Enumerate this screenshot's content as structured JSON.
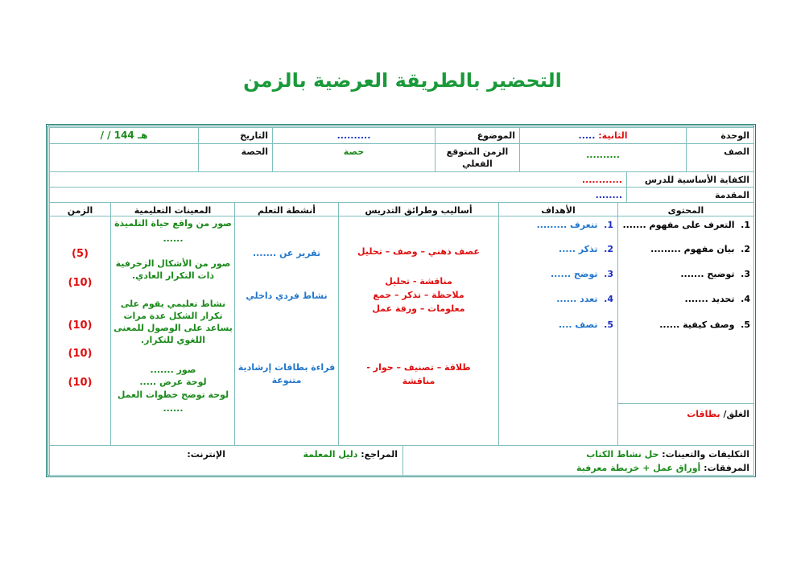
{
  "title": "التحضير بالطريقة العرضية بالزمن",
  "header": {
    "unit_label": "الوحدة",
    "unit_value_prefix": "الثانية:",
    "unit_value": ".....",
    "topic_label": "الموضوع",
    "topic_value": "..........",
    "date_label": "التاريخ",
    "date_value": "/    /   144 هـ",
    "grade_label": "الصف",
    "grade_value": "..........",
    "time_label": "الزمن المتوقع الفعلي",
    "time_value": "حصة",
    "period_label": "الحصة",
    "competency_label": "الكفاية الأساسية للدرس",
    "competency_value": "............",
    "intro_label": "المقدمة",
    "intro_value": "........"
  },
  "columns": [
    "المحتوى",
    "الأهداف",
    "أساليب وطرائق التدريس",
    "أنشطة التعلم",
    "المعينات التعليمية",
    "الزمن"
  ],
  "content": [
    "التعرف على مفهوم .......",
    "بيان مفهوم .........",
    "توضيح .......",
    "تحديد .......",
    "وصف كيفية ......"
  ],
  "objectives": [
    "تتعرف .........",
    "تذكر .....",
    "توضح ......",
    "تعدد ......",
    "تصف ...."
  ],
  "methods": [
    "عصف ذهني – وصف – تحليل",
    "مناقشة - تحليل",
    "ملاحظة – تذكر – جمع",
    "معلومات – ورقة عمل",
    "طلاقة – تصنيف – حوار -",
    "مناقشة"
  ],
  "activities": [
    "تقرير عن .......",
    "نشاط فردي داخلي",
    "قراءة بطاقات إرشادية متنوعة"
  ],
  "aids": [
    "صور من واقع حياة التلميذة",
    "......",
    "صور من الأشكال الزخرفية ذات التكرار العادي.",
    "نشاط تعليمي يقوم على تكرار الشكل عدة مرات يساعد على الوصول  للمعنى اللغوي للتكرار.",
    "صور  .......",
    "لوحة عرض .....",
    "لوحة توضح خطوات العمل",
    "......"
  ],
  "times": [
    "(5)",
    "(10)",
    "(10)",
    "(10)",
    "(10)"
  ],
  "closing_label": "الغلق/",
  "closing_value": "بطاقات",
  "footer": {
    "assign_label": "التكليفات والتعينات:",
    "assign_value": "حل نشاط الكتاب",
    "attach_label": "المرفقات:",
    "attach_value": "أوراق عمل + خريطة معرفية",
    "refs_label": "المراجع:",
    "refs_value": "دليل المعلمة",
    "internet_label": "الإنترنت:"
  }
}
